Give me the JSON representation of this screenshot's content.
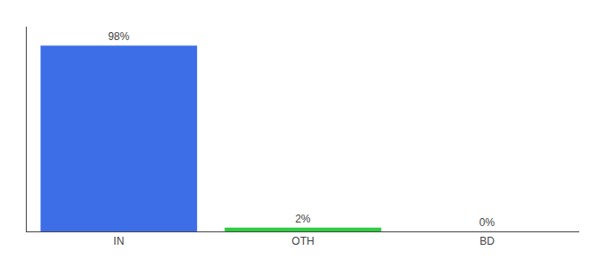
{
  "chart_data": {
    "type": "bar",
    "categories": [
      "IN",
      "OTH",
      "BD"
    ],
    "values": [
      98,
      2,
      0
    ],
    "value_labels": [
      "98%",
      "2%",
      "0%"
    ],
    "data_labels": true,
    "colors": [
      "#3d6ee8",
      "#2ecc40",
      "#3d6ee8"
    ],
    "ylim": [
      0,
      108
    ],
    "grid": false,
    "tick_labels": "x"
  }
}
